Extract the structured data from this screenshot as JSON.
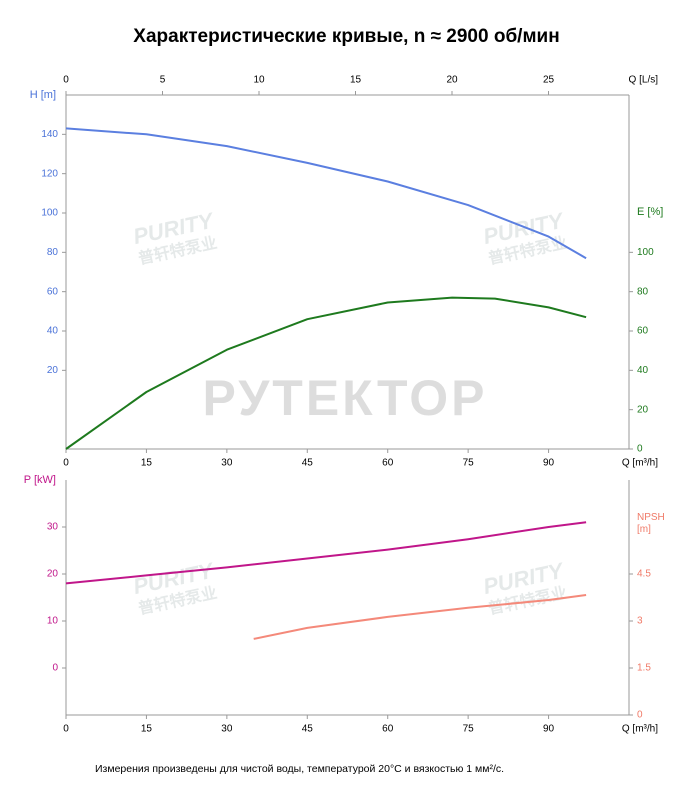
{
  "title": "Характеристические кривые, n ≈ 2900 об/мин",
  "footnote": "Измерения произведены для чистой воды, температурой 20°C и вязкостью 1 мм²/с.",
  "watermark": "РУТЕКТОР",
  "logo_watermark": "PURITY",
  "logo_watermark_sub": "普轩特泵业",
  "chart_data": [
    {
      "type": "line",
      "xlabel": "Q [m³/h]",
      "xlim": [
        0,
        105
      ],
      "xticks": [
        0,
        15,
        30,
        45,
        60,
        75,
        90
      ],
      "x2label": "Q [L/s]",
      "x2lim": [
        0,
        29.17
      ],
      "x2ticks": [
        0,
        5,
        10,
        15,
        20,
        25
      ],
      "ylabel": "H [m]",
      "ylim": [
        -20,
        160
      ],
      "yticks": [
        20,
        40,
        60,
        80,
        100,
        120,
        140
      ],
      "ycolor": "#4a72d8",
      "y2label": "E [%]",
      "y2lim": [
        0,
        180
      ],
      "y2ticks": [
        0,
        20,
        40,
        60,
        80,
        100
      ],
      "y2color": "#1e7a1e",
      "series": [
        {
          "color": "#5b7fe0",
          "x": [
            0,
            15,
            30,
            45,
            60,
            75,
            90,
            97
          ],
          "values": [
            143,
            140,
            134,
            125.5,
            116,
            104,
            88,
            77
          ]
        },
        {
          "color": "#1e7a1e",
          "axis": "y2",
          "x": [
            0,
            15,
            30,
            45,
            60,
            72,
            80,
            90,
            97
          ],
          "values": [
            0,
            29,
            50.5,
            66,
            74.5,
            77,
            76.5,
            72,
            67
          ]
        }
      ]
    },
    {
      "type": "line",
      "xlabel": "Q [m³/h]",
      "xlim": [
        0,
        105
      ],
      "xticks": [
        0,
        15,
        30,
        45,
        60,
        75,
        90
      ],
      "ylabel": "P [kW]",
      "ylim": [
        -10,
        40
      ],
      "yticks": [
        0,
        10,
        20,
        30
      ],
      "ycolor": "#c0168a",
      "y2label": "NPSH [m]",
      "y2lim": [
        0,
        7.5
      ],
      "y2ticks": [
        0,
        1.5,
        3,
        4.5
      ],
      "y2color": "#f07a68",
      "series": [
        {
          "color": "#c0168a",
          "x": [
            0,
            15,
            30,
            45,
            60,
            75,
            90,
            97
          ],
          "values": [
            18,
            19.7,
            21.4,
            23.3,
            25.2,
            27.4,
            30,
            31
          ]
        },
        {
          "color": "#f4897a",
          "axis": "y2",
          "x": [
            35,
            45,
            60,
            75,
            90,
            97
          ],
          "values": [
            2.43,
            2.78,
            3.13,
            3.42,
            3.67,
            3.83
          ]
        }
      ]
    }
  ]
}
